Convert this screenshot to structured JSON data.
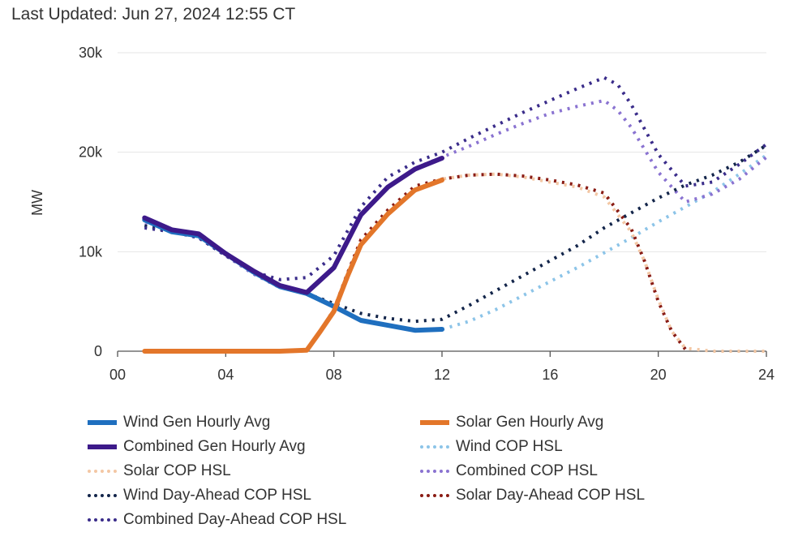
{
  "header": {
    "last_updated": "Last Updated: Jun 27, 2024 12:55 CT"
  },
  "chart_data": {
    "type": "line",
    "ylabel": "MW",
    "xlim": [
      0,
      24
    ],
    "ylim": [
      0,
      30000
    ],
    "x_ticks": [
      0,
      4,
      8,
      12,
      16,
      20,
      24
    ],
    "x_tick_labels": [
      "00",
      "04",
      "08",
      "12",
      "16",
      "20",
      "24"
    ],
    "y_ticks": [
      0,
      10000,
      20000,
      30000
    ],
    "y_tick_labels": [
      "0",
      "10k",
      "20k",
      "30k"
    ],
    "grid": true,
    "legend_position": "bottom",
    "series": [
      {
        "name": "Wind Gen Hourly Avg",
        "style": "solid",
        "color": "#1f6fbf",
        "x": [
          1,
          2,
          3,
          4,
          5,
          6,
          7,
          8,
          9,
          10,
          11,
          12
        ],
        "y": [
          13200,
          12000,
          11600,
          9800,
          8000,
          6500,
          5800,
          4500,
          3100,
          2600,
          2100,
          2200
        ]
      },
      {
        "name": "Solar Gen Hourly Avg",
        "style": "solid",
        "color": "#e3762a",
        "x": [
          1,
          2,
          3,
          4,
          5,
          6,
          7,
          7.5,
          8,
          8.5,
          9,
          10,
          11,
          12
        ],
        "y": [
          0,
          0,
          0,
          0,
          0,
          0,
          100,
          2000,
          4000,
          7500,
          10700,
          13800,
          16200,
          17200
        ]
      },
      {
        "name": "Combined Gen Hourly Avg",
        "style": "solid",
        "color": "#3d1a8a",
        "x": [
          1,
          2,
          3,
          4,
          5,
          6,
          7,
          8,
          9,
          10,
          11,
          12
        ],
        "y": [
          13400,
          12200,
          11800,
          9800,
          8100,
          6600,
          5900,
          8400,
          13700,
          16500,
          18300,
          19400
        ]
      },
      {
        "name": "Wind COP HSL",
        "style": "dotted",
        "color": "#8cc4e8",
        "x": [
          12,
          13,
          14,
          15,
          16,
          17,
          18,
          19,
          20,
          21,
          22,
          23,
          24
        ],
        "y": [
          2200,
          3000,
          4200,
          5600,
          7000,
          8400,
          9900,
          11400,
          13000,
          14500,
          16000,
          17800,
          19700
        ]
      },
      {
        "name": "Solar COP HSL",
        "style": "dotted",
        "color": "#f3c7a4",
        "x": [
          1,
          6,
          7,
          8,
          9,
          10,
          11,
          12,
          13,
          14,
          15,
          16,
          17,
          18,
          19,
          19.5,
          20,
          20.5,
          21,
          22,
          23,
          24
        ],
        "y": [
          0,
          0,
          100,
          4000,
          10600,
          13800,
          16200,
          17300,
          17700,
          17800,
          17500,
          17000,
          16500,
          15500,
          12000,
          9000,
          5200,
          2000,
          300,
          0,
          0,
          0
        ]
      },
      {
        "name": "Combined COP HSL",
        "style": "dotted",
        "color": "#8a73d1",
        "x": [
          1,
          2,
          3,
          4,
          5,
          6,
          7,
          8,
          9,
          10,
          11,
          12,
          13,
          14,
          15,
          16,
          17,
          18,
          18.5,
          19,
          20,
          21,
          22,
          23,
          24
        ],
        "y": [
          12700,
          12200,
          11400,
          9600,
          7800,
          6400,
          5800,
          8400,
          13800,
          16400,
          18400,
          19500,
          20600,
          21800,
          22900,
          23900,
          24600,
          25200,
          24200,
          22500,
          18000,
          15000,
          15800,
          17300,
          19500
        ]
      },
      {
        "name": "Wind Day-Ahead COP HSL",
        "style": "dotted",
        "color": "#13254a",
        "x": [
          1,
          2,
          3,
          4,
          5,
          6,
          7,
          8,
          9,
          10,
          11,
          12,
          13,
          14,
          15,
          16,
          17,
          18,
          19,
          20,
          21,
          22,
          23,
          24
        ],
        "y": [
          12600,
          12000,
          11600,
          9700,
          8000,
          6500,
          5800,
          4800,
          3800,
          3300,
          3000,
          3200,
          4600,
          6100,
          7600,
          9100,
          10600,
          12400,
          13900,
          15400,
          16700,
          17700,
          19000,
          20700
        ]
      },
      {
        "name": "Solar Day-Ahead COP HSL",
        "style": "dotted",
        "color": "#8a1c14",
        "x": [
          7,
          7.5,
          8,
          8.5,
          9,
          10,
          11,
          12,
          13,
          14,
          15,
          16,
          17,
          18,
          19,
          19.5,
          20,
          20.5,
          21
        ],
        "y": [
          100,
          2000,
          4200,
          7800,
          11200,
          14200,
          16600,
          17300,
          17700,
          17800,
          17600,
          17200,
          16700,
          15900,
          12300,
          9000,
          5000,
          2000,
          200
        ]
      },
      {
        "name": "Combined Day-Ahead COP HSL",
        "style": "dotted",
        "color": "#3a2c8a",
        "x": [
          1,
          2,
          3,
          4,
          5,
          6,
          7,
          8,
          9,
          10,
          11,
          12,
          13,
          14,
          15,
          16,
          17,
          18,
          18.5,
          19,
          20,
          21,
          22,
          23,
          24
        ],
        "y": [
          12400,
          12000,
          11400,
          9600,
          8000,
          7200,
          7400,
          9600,
          14500,
          17500,
          19000,
          20000,
          21400,
          22700,
          24000,
          25200,
          26400,
          27500,
          26800,
          24800,
          19800,
          16600,
          17000,
          18800,
          20800
        ]
      }
    ]
  }
}
